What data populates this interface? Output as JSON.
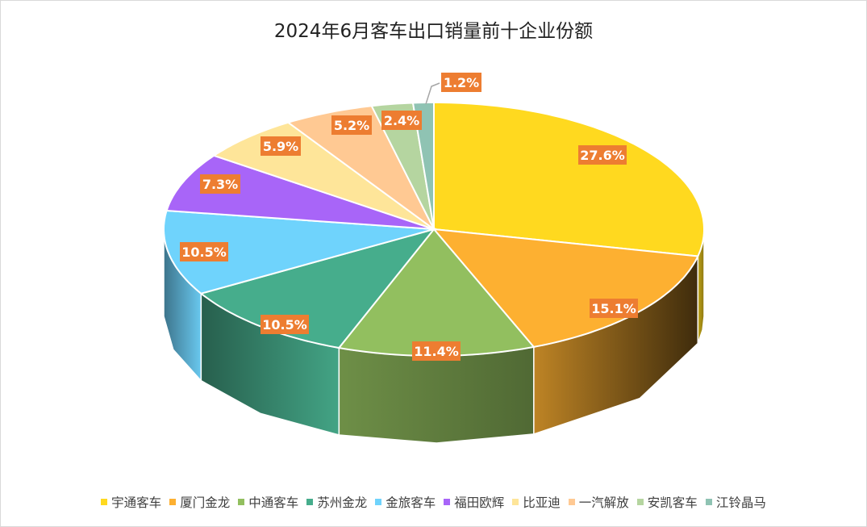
{
  "chart_data": {
    "type": "pie",
    "style": "3d",
    "title": "2024年6月客车出口销量前十企业份额",
    "categories": [
      "宇通客车",
      "厦门金龙",
      "中通客车",
      "苏州金龙",
      "金旅客车",
      "福田欧辉",
      "比亚迪",
      "一汽解放",
      "安凯客车",
      "江铃晶马"
    ],
    "values": [
      27.6,
      15.1,
      11.4,
      10.5,
      10.5,
      7.3,
      5.9,
      5.2,
      2.4,
      1.2
    ],
    "data_labels": [
      "27.6%",
      "15.1%",
      "11.4%",
      "10.5%",
      "10.5%",
      "7.3%",
      "5.9%",
      "5.2%",
      "2.4%",
      "1.2%"
    ],
    "colors": [
      "#FFD91F",
      "#FDB031",
      "#92BF5F",
      "#46AD8C",
      "#6FD3FC",
      "#A865F8",
      "#FEE599",
      "#FFC993",
      "#B5D5A0",
      "#8FC3B3"
    ],
    "label_color": "#ED7D31",
    "legend_position": "bottom"
  }
}
